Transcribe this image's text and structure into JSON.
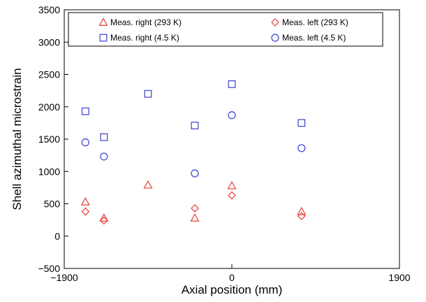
{
  "chart_data": {
    "type": "scatter",
    "xlabel": "Axial position (mm)",
    "ylabel": "Shell azimuthal microstrain",
    "xlim": [
      -1900,
      1900
    ],
    "ylim": [
      -500,
      3500
    ],
    "xticks": [
      -1900,
      0,
      1900
    ],
    "yticks": [
      -500,
      0,
      500,
      1000,
      1500,
      2000,
      2500,
      3000,
      3500
    ],
    "xtick_labels": [
      "−1900",
      "0",
      "1900"
    ],
    "ytick_labels": [
      "−500",
      "0",
      "500",
      "1000",
      "1500",
      "2000",
      "2500",
      "3000",
      "3500"
    ],
    "grid": false,
    "legend_position": "top",
    "series": [
      {
        "name": "Meas. right (293 K)",
        "marker": "triangle",
        "color": "#e8403c",
        "points": [
          [
            -1660,
            530
          ],
          [
            -1450,
            280
          ],
          [
            -950,
            790
          ],
          [
            -420,
            280
          ],
          [
            0,
            780
          ],
          [
            790,
            380
          ]
        ]
      },
      {
        "name": "Meas. left (293 K)",
        "marker": "diamond",
        "color": "#e8403c",
        "points": [
          [
            -1660,
            380
          ],
          [
            -1450,
            240
          ],
          [
            -420,
            430
          ],
          [
            0,
            630
          ],
          [
            790,
            310
          ]
        ]
      },
      {
        "name": "Meas. right (4.5 K)",
        "marker": "square",
        "color": "#3a3fd0",
        "points": [
          [
            -1660,
            1930
          ],
          [
            -1450,
            1530
          ],
          [
            -950,
            2200
          ],
          [
            -420,
            1710
          ],
          [
            0,
            2350
          ],
          [
            790,
            1750
          ]
        ]
      },
      {
        "name": "Meas. left (4.5 K)",
        "marker": "circle",
        "color": "#3a3fd0",
        "points": [
          [
            -1660,
            1450
          ],
          [
            -1450,
            1230
          ],
          [
            -420,
            970
          ],
          [
            0,
            1870
          ],
          [
            790,
            1360
          ]
        ]
      }
    ]
  }
}
